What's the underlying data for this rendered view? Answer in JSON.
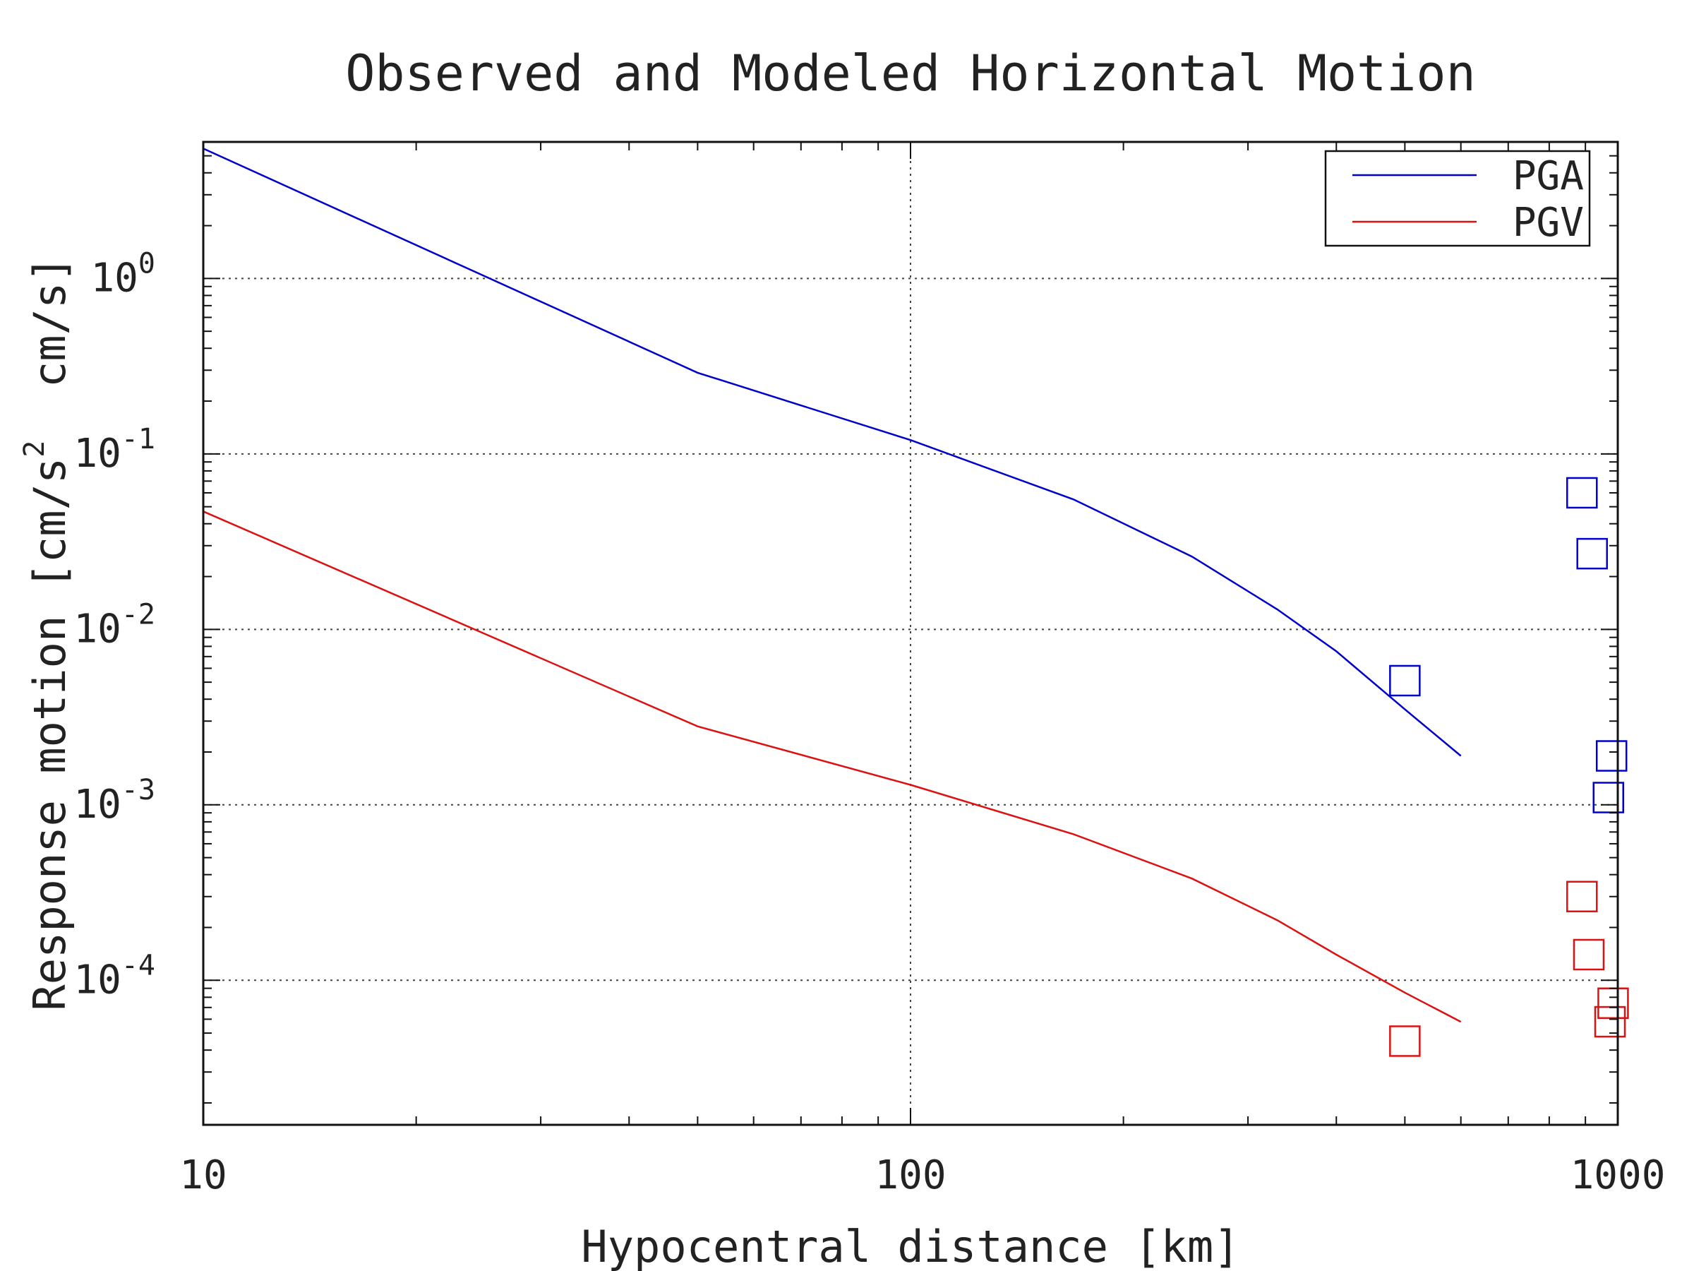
{
  "chart_data": {
    "type": "line",
    "title": "Observed and Modeled Horizontal Motion",
    "xlabel": "Hypocentral distance [km]",
    "ylabel": {
      "prefix": "Response motion [cm/s",
      "sup": "2",
      "suffix": "  cm/s]"
    },
    "xscale": "log",
    "yscale": "log",
    "xlim": [
      10,
      1000
    ],
    "ylim": [
      1.5e-05,
      6
    ],
    "xticks": [
      {
        "value": 10,
        "label": "10"
      },
      {
        "value": 100,
        "label": "100"
      },
      {
        "value": 1000,
        "label": "1000"
      }
    ],
    "yticks": [
      {
        "value": 1,
        "base": "10",
        "exp": "0"
      },
      {
        "value": 0.1,
        "base": "10",
        "exp": "-1"
      },
      {
        "value": 0.01,
        "base": "10",
        "exp": "-2"
      },
      {
        "value": 0.001,
        "base": "10",
        "exp": "-3"
      },
      {
        "value": 0.0001,
        "base": "10",
        "exp": "-4"
      }
    ],
    "grid": true,
    "legend": {
      "placement": "top-right"
    },
    "series": [
      {
        "name": "PGA",
        "color": "#0000cc",
        "points": [
          [
            10,
            5.5
          ],
          [
            50,
            0.29
          ],
          [
            100,
            0.12
          ],
          [
            170,
            0.055
          ],
          [
            250,
            0.026
          ],
          [
            330,
            0.013
          ],
          [
            400,
            0.0075
          ],
          [
            500,
            0.0035
          ],
          [
            600,
            0.0019
          ]
        ]
      },
      {
        "name": "PGV",
        "color": "#dd1111",
        "points": [
          [
            10,
            0.047
          ],
          [
            50,
            0.0028
          ],
          [
            100,
            0.0013
          ],
          [
            170,
            0.00068
          ],
          [
            250,
            0.00038
          ],
          [
            330,
            0.00022
          ],
          [
            400,
            0.00014
          ],
          [
            500,
            8.5e-05
          ],
          [
            600,
            5.8e-05
          ]
        ]
      }
    ],
    "observations": [
      {
        "series": "PGA",
        "color": "#0000cc",
        "points": [
          [
            500,
            0.0051
          ],
          [
            890,
            0.06
          ],
          [
            920,
            0.027
          ],
          [
            980,
            0.0019
          ],
          [
            970,
            0.0011
          ]
        ]
      },
      {
        "series": "PGV",
        "color": "#dd1111",
        "points": [
          [
            500,
            4.5e-05
          ],
          [
            890,
            0.0003
          ],
          [
            910,
            0.00014
          ],
          [
            985,
            7.4e-05
          ],
          [
            975,
            5.8e-05
          ]
        ]
      }
    ]
  }
}
